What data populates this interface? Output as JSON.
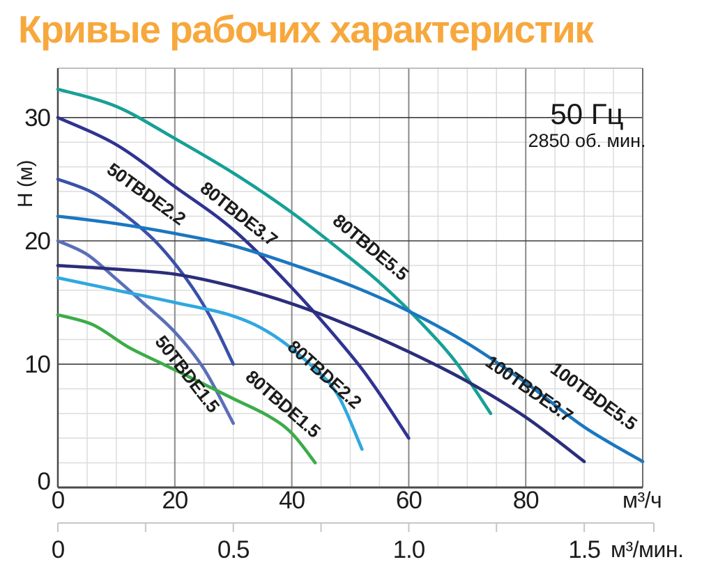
{
  "title": "Кривые рабочих характеристик",
  "title_color": "#F7A83D",
  "annotation": {
    "frequency": "50 Гц",
    "rpm": "2850 об. мин."
  },
  "chart_data": {
    "type": "line",
    "title": "Кривые рабочих характеристик",
    "annotation": [
      "50 Гц",
      "2850 об. мин."
    ],
    "ylabel": "H (м)",
    "y_axis": {
      "label": "H (м)",
      "ticks": [
        "0",
        "10",
        "20",
        "30"
      ],
      "tick_values": [
        0,
        10,
        20,
        30
      ],
      "range": [
        0,
        34
      ],
      "minor_step": 2,
      "major_step": 10,
      "grid": true
    },
    "x_axis_hours": {
      "unit": "м³/ч",
      "ticks": [
        "0",
        "20",
        "40",
        "60",
        "80"
      ],
      "tick_values": [
        0,
        20,
        40,
        60,
        80
      ],
      "range": [
        0,
        100
      ],
      "minor_step": 5,
      "major_step": 20,
      "grid": true
    },
    "x_axis_minutes": {
      "unit": "м³/мин.",
      "ticks": [
        "0",
        "0.5",
        "1.0",
        "1.5"
      ],
      "tick_values": [
        0,
        0.5,
        1.0,
        1.5
      ],
      "minor_step": 0.25,
      "hours_per_minute_unit": 60
    },
    "series": [
      {
        "name": "80TBDE5.5",
        "color": "#16A096",
        "points": [
          [
            0,
            32.3
          ],
          [
            10,
            30.9
          ],
          [
            20,
            28.3
          ],
          [
            30,
            25.5
          ],
          [
            40,
            22.3
          ],
          [
            50,
            18.6
          ],
          [
            56,
            16.2
          ],
          [
            62,
            13.4
          ],
          [
            68,
            10.2
          ],
          [
            74,
            6.0
          ]
        ],
        "label": {
          "q": 52.8,
          "h": 19.1,
          "angle": 40
        }
      },
      {
        "name": "80TBDE3.7",
        "color": "#2F3391",
        "points": [
          [
            0,
            30.0
          ],
          [
            10,
            27.8
          ],
          [
            20,
            24.4
          ],
          [
            30,
            20.9
          ],
          [
            40,
            16.2
          ],
          [
            50,
            10.8
          ],
          [
            55,
            7.6
          ],
          [
            60,
            4.0
          ]
        ],
        "label": {
          "q": 30.3,
          "h": 21.8,
          "angle": 38
        }
      },
      {
        "name": "50TBDE2.2",
        "color": "#3A50A8",
        "points": [
          [
            0,
            25.0
          ],
          [
            6,
            23.9
          ],
          [
            12,
            21.9
          ],
          [
            17,
            19.8
          ],
          [
            22,
            16.9
          ],
          [
            26,
            13.9
          ],
          [
            30,
            10.0
          ]
        ],
        "label": {
          "q": 14.5,
          "h": 23.4,
          "angle": 36
        }
      },
      {
        "name": "100TBDE5.5",
        "color": "#1B77C0",
        "points": [
          [
            0,
            22.0
          ],
          [
            10,
            21.4
          ],
          [
            20,
            20.6
          ],
          [
            30,
            19.6
          ],
          [
            40,
            18.1
          ],
          [
            50,
            16.4
          ],
          [
            60,
            14.3
          ],
          [
            70,
            11.7
          ],
          [
            80,
            8.5
          ],
          [
            90,
            4.9
          ],
          [
            100,
            2.1
          ]
        ],
        "label": {
          "q": 91.0,
          "h": 7.0,
          "angle": 36
        }
      },
      {
        "name": "50TBDE1.5",
        "color": "#5B6FB8",
        "points": [
          [
            0,
            20.0
          ],
          [
            5,
            18.9
          ],
          [
            10,
            16.9
          ],
          [
            15,
            14.8
          ],
          [
            20,
            12.6
          ],
          [
            25,
            9.6
          ],
          [
            30,
            5.2
          ]
        ],
        "label": {
          "q": 21.3,
          "h": 8.9,
          "angle": 52
        }
      },
      {
        "name": "100TBDE3.7",
        "color": "#2B2E7A",
        "points": [
          [
            0,
            18.0
          ],
          [
            10,
            17.7
          ],
          [
            20,
            17.3
          ],
          [
            30,
            16.3
          ],
          [
            40,
            14.9
          ],
          [
            50,
            13.1
          ],
          [
            60,
            11.0
          ],
          [
            70,
            8.6
          ],
          [
            80,
            5.7
          ],
          [
            90,
            2.1
          ]
        ],
        "label": {
          "q": 80.0,
          "h": 7.6,
          "angle": 35
        }
      },
      {
        "name": "80TBDE2.2",
        "color": "#2FA8E0",
        "points": [
          [
            0,
            17.0
          ],
          [
            10,
            16.0
          ],
          [
            20,
            15.0
          ],
          [
            30,
            13.9
          ],
          [
            37,
            12.3
          ],
          [
            44,
            9.6
          ],
          [
            48,
            7.4
          ],
          [
            52,
            3.1
          ]
        ],
        "label": {
          "q": 44.9,
          "h": 8.8,
          "angle": 42
        }
      },
      {
        "name": "80TBDE1.5",
        "color": "#3CAC49",
        "points": [
          [
            0,
            14.0
          ],
          [
            6,
            13.2
          ],
          [
            12,
            11.4
          ],
          [
            18,
            10.0
          ],
          [
            24,
            8.6
          ],
          [
            30,
            7.2
          ],
          [
            36,
            5.8
          ],
          [
            40,
            4.4
          ],
          [
            44,
            2.0
          ]
        ],
        "label": {
          "q": 37.8,
          "h": 6.4,
          "angle": 41
        }
      }
    ]
  }
}
